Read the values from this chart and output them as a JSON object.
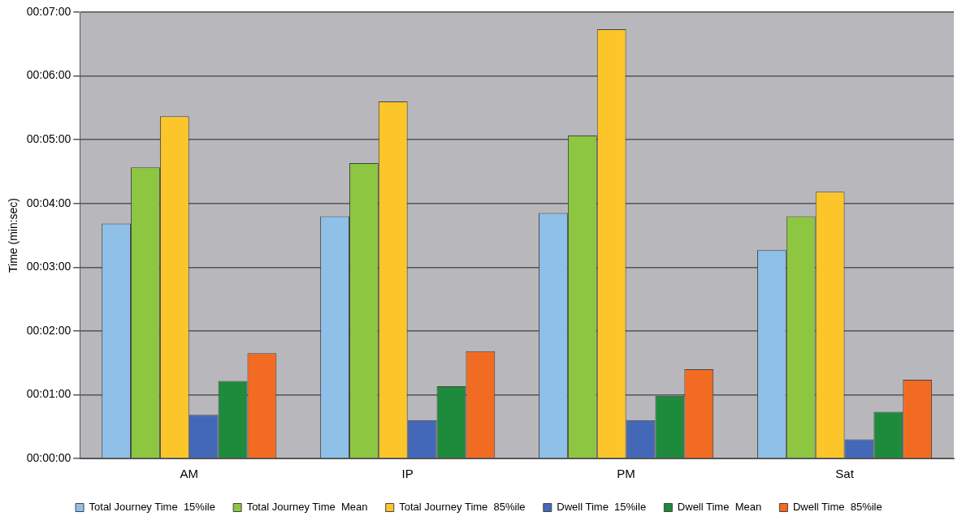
{
  "chart_data": {
    "type": "bar",
    "ylabel": "Time (min:sec)",
    "categories": [
      "AM",
      "IP",
      "PM",
      "Sat"
    ],
    "series": [
      {
        "name": "Total Journey Time  15%ile",
        "color": "#8ec0e8",
        "values": [
          221,
          228,
          231,
          196
        ]
      },
      {
        "name": "Total Journey Time  Mean",
        "color": "#8dc641",
        "values": [
          274,
          278,
          304,
          228
        ]
      },
      {
        "name": "Total Journey Time  85%ile",
        "color": "#fcc62a",
        "values": [
          322,
          336,
          404,
          251
        ]
      },
      {
        "name": "Dwell Time  15%ile",
        "color": "#4468b8",
        "values": [
          41,
          36,
          36,
          18
        ]
      },
      {
        "name": "Dwell Time  Mean",
        "color": "#1e8a3c",
        "values": [
          73,
          68,
          59,
          44
        ]
      },
      {
        "name": "Dwell Time  85%ile",
        "color": "#f26b22",
        "values": [
          99,
          101,
          84,
          74
        ]
      }
    ],
    "ylim": [
      0,
      420
    ],
    "yticks": [
      {
        "value": 0,
        "label": "00:00:00"
      },
      {
        "value": 60,
        "label": "00:01:00"
      },
      {
        "value": 120,
        "label": "00:02:00"
      },
      {
        "value": 180,
        "label": "00:03:00"
      },
      {
        "value": 240,
        "label": "00:04:00"
      },
      {
        "value": 300,
        "label": "00:05:00"
      },
      {
        "value": 360,
        "label": "00:06:00"
      },
      {
        "value": 420,
        "label": "00:07:00"
      }
    ],
    "grid": "y",
    "legend": "bottom"
  }
}
